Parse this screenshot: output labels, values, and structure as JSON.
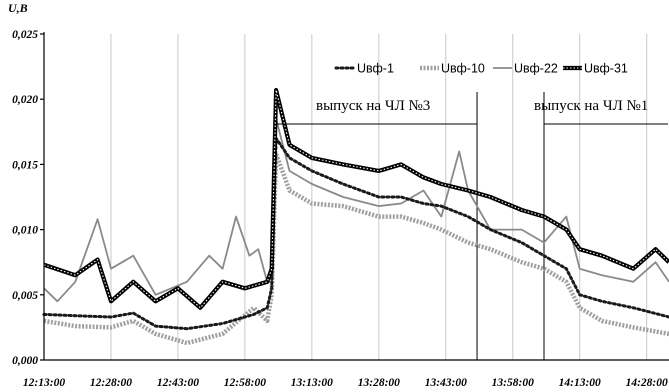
{
  "chart_data": {
    "type": "line",
    "ylabel": "U,B",
    "ylim": [
      0,
      0.025
    ],
    "y_ticks": [
      "0,000",
      "0,005",
      "0,010",
      "0,015",
      "0,020",
      "0,025"
    ],
    "x_ticks": [
      "12:13:00",
      "12:28:00",
      "12:43:00",
      "12:58:00",
      "13:13:00",
      "13:28:00",
      "13:43:00",
      "13:58:00",
      "14:13:00",
      "14:28:00"
    ],
    "x_range_minutes": [
      733,
      873
    ],
    "grid": "vertical",
    "legend_position": "top-right",
    "series": [
      {
        "name": "Uвф-1",
        "color": "#1a1a1a",
        "style": "dotted",
        "points": [
          [
            733,
            0.0035
          ],
          [
            740,
            0.0034
          ],
          [
            748,
            0.0033
          ],
          [
            753,
            0.0036
          ],
          [
            758,
            0.0026
          ],
          [
            765,
            0.0024
          ],
          [
            773,
            0.0028
          ],
          [
            780,
            0.0035
          ],
          [
            783,
            0.004
          ],
          [
            784,
            0.0055
          ],
          [
            785,
            0.017
          ],
          [
            788,
            0.0155
          ],
          [
            793,
            0.0145
          ],
          [
            800,
            0.0135
          ],
          [
            808,
            0.0125
          ],
          [
            813,
            0.0125
          ],
          [
            818,
            0.012
          ],
          [
            822,
            0.0118
          ],
          [
            828,
            0.011
          ],
          [
            833,
            0.01
          ],
          [
            840,
            0.009
          ],
          [
            845,
            0.008
          ],
          [
            850,
            0.007
          ],
          [
            853,
            0.005
          ],
          [
            858,
            0.0045
          ],
          [
            865,
            0.004
          ],
          [
            873,
            0.0033
          ]
        ]
      },
      {
        "name": "Uвф-10",
        "color": "#a0a0a0",
        "style": "dotted-thick",
        "points": [
          [
            733,
            0.003
          ],
          [
            740,
            0.0026
          ],
          [
            748,
            0.0025
          ],
          [
            753,
            0.003
          ],
          [
            758,
            0.002
          ],
          [
            765,
            0.0013
          ],
          [
            773,
            0.002
          ],
          [
            780,
            0.004
          ],
          [
            783,
            0.003
          ],
          [
            784,
            0.005
          ],
          [
            785,
            0.0158
          ],
          [
            788,
            0.013
          ],
          [
            793,
            0.012
          ],
          [
            800,
            0.0118
          ],
          [
            808,
            0.011
          ],
          [
            813,
            0.011
          ],
          [
            818,
            0.0105
          ],
          [
            822,
            0.01
          ],
          [
            828,
            0.009
          ],
          [
            833,
            0.0085
          ],
          [
            840,
            0.0075
          ],
          [
            845,
            0.007
          ],
          [
            850,
            0.006
          ],
          [
            853,
            0.004
          ],
          [
            858,
            0.003
          ],
          [
            865,
            0.0025
          ],
          [
            873,
            0.002
          ]
        ]
      },
      {
        "name": "Uвф-22",
        "color": "#8a8a8a",
        "style": "solid-thin",
        "points": [
          [
            733,
            0.0055
          ],
          [
            736,
            0.0045
          ],
          [
            740,
            0.006
          ],
          [
            745,
            0.0108
          ],
          [
            748,
            0.007
          ],
          [
            753,
            0.008
          ],
          [
            758,
            0.005
          ],
          [
            765,
            0.006
          ],
          [
            770,
            0.008
          ],
          [
            773,
            0.007
          ],
          [
            776,
            0.011
          ],
          [
            779,
            0.008
          ],
          [
            781,
            0.0085
          ],
          [
            783,
            0.006
          ],
          [
            784,
            0.006
          ],
          [
            785,
            0.0185
          ],
          [
            788,
            0.0145
          ],
          [
            793,
            0.0135
          ],
          [
            800,
            0.0125
          ],
          [
            808,
            0.0118
          ],
          [
            813,
            0.012
          ],
          [
            818,
            0.013
          ],
          [
            822,
            0.011
          ],
          [
            826,
            0.016
          ],
          [
            828,
            0.013
          ],
          [
            833,
            0.01
          ],
          [
            840,
            0.01
          ],
          [
            845,
            0.009
          ],
          [
            850,
            0.011
          ],
          [
            853,
            0.007
          ],
          [
            858,
            0.0065
          ],
          [
            865,
            0.006
          ],
          [
            870,
            0.0075
          ],
          [
            873,
            0.006
          ]
        ]
      },
      {
        "name": "Uвф-31",
        "color": "#000000",
        "style": "double-thick",
        "points": [
          [
            733,
            0.0073
          ],
          [
            740,
            0.0065
          ],
          [
            745,
            0.0077
          ],
          [
            748,
            0.0045
          ],
          [
            753,
            0.006
          ],
          [
            758,
            0.0045
          ],
          [
            763,
            0.0055
          ],
          [
            768,
            0.004
          ],
          [
            773,
            0.006
          ],
          [
            778,
            0.0055
          ],
          [
            783,
            0.006
          ],
          [
            784,
            0.007
          ],
          [
            785,
            0.0207
          ],
          [
            788,
            0.0165
          ],
          [
            793,
            0.0155
          ],
          [
            800,
            0.015
          ],
          [
            808,
            0.0145
          ],
          [
            813,
            0.015
          ],
          [
            818,
            0.014
          ],
          [
            822,
            0.0135
          ],
          [
            828,
            0.013
          ],
          [
            833,
            0.0125
          ],
          [
            840,
            0.0115
          ],
          [
            845,
            0.011
          ],
          [
            850,
            0.01
          ],
          [
            853,
            0.0085
          ],
          [
            858,
            0.008
          ],
          [
            865,
            0.007
          ],
          [
            870,
            0.0085
          ],
          [
            873,
            0.0075
          ]
        ]
      }
    ],
    "annotations": [
      {
        "text": "выпуск на ЧЛ №3",
        "x_start": 785,
        "x_end": 830,
        "y": 0.0178
      },
      {
        "text": "выпуск на ЧЛ №1",
        "x_start": 845,
        "x_end": 873,
        "y": 0.0178
      }
    ],
    "vertical_markers": [
      830,
      845
    ]
  }
}
